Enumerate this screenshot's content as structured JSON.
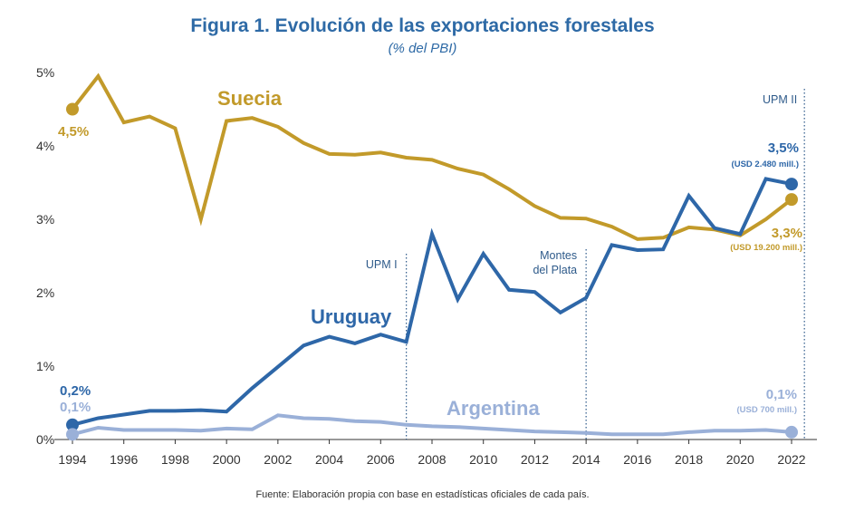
{
  "header": {
    "title": "Figura 1. Evolución de las exportaciones forestales",
    "subtitle": "(% del PBI)"
  },
  "footer": {
    "source": "Fuente: Elaboración propia con base en estadísticas oficiales de cada país."
  },
  "colors": {
    "suecia": "#c29a2a",
    "uruguay": "#2e67a8",
    "argentina": "#9ab0d8",
    "axis": "#333333"
  },
  "chart_data": {
    "type": "line",
    "title": "Figura 1. Evolución de las exportaciones forestales",
    "subtitle": "(% del PBI)",
    "xlim": [
      1994,
      2022
    ],
    "ylim": [
      0,
      5
    ],
    "x_ticks": [
      1994,
      1996,
      1998,
      2000,
      2002,
      2004,
      2006,
      2008,
      2010,
      2012,
      2014,
      2016,
      2018,
      2020,
      2022
    ],
    "y_ticks": [
      {
        "value": 0,
        "label": "0%"
      },
      {
        "value": 1,
        "label": "1%"
      },
      {
        "value": 2,
        "label": "2%"
      },
      {
        "value": 3,
        "label": "3%"
      },
      {
        "value": 4,
        "label": "4%"
      },
      {
        "value": 5,
        "label": "5%"
      }
    ],
    "x": [
      1994,
      1995,
      1996,
      1997,
      1998,
      1999,
      2000,
      2001,
      2002,
      2003,
      2004,
      2005,
      2006,
      2007,
      2008,
      2009,
      2010,
      2011,
      2012,
      2013,
      2014,
      2015,
      2016,
      2017,
      2018,
      2019,
      2020,
      2021,
      2022
    ],
    "series": [
      {
        "name": "Suecia",
        "color": "#c29a2a",
        "values": [
          4.5,
          4.95,
          4.32,
          4.4,
          4.24,
          3.0,
          4.34,
          4.38,
          4.26,
          4.04,
          3.89,
          3.88,
          3.91,
          3.84,
          3.81,
          3.69,
          3.61,
          3.41,
          3.18,
          3.02,
          3.01,
          2.9,
          2.73,
          2.75,
          2.89,
          2.86,
          2.78,
          3.0,
          3.27
        ],
        "start_label": "4,5%",
        "end_label": "3,3%",
        "end_sublabel": "(USD 19.200 mill.)"
      },
      {
        "name": "Uruguay",
        "color": "#2e67a8",
        "values": [
          0.2,
          0.29,
          0.34,
          0.39,
          0.39,
          0.4,
          0.38,
          0.7,
          0.99,
          1.28,
          1.4,
          1.31,
          1.43,
          1.33,
          2.8,
          1.91,
          2.53,
          2.04,
          2.01,
          1.73,
          1.93,
          2.65,
          2.58,
          2.59,
          3.32,
          2.88,
          2.8,
          3.55,
          3.48
        ],
        "start_label": "0,2%",
        "end_label": "3,5%",
        "end_sublabel": "(USD 2.480 mill.)"
      },
      {
        "name": "Argentina",
        "color": "#9ab0d8",
        "values": [
          0.07,
          0.16,
          0.13,
          0.13,
          0.13,
          0.12,
          0.15,
          0.14,
          0.33,
          0.29,
          0.28,
          0.25,
          0.24,
          0.2,
          0.18,
          0.17,
          0.15,
          0.13,
          0.11,
          0.1,
          0.09,
          0.07,
          0.07,
          0.07,
          0.1,
          0.12,
          0.12,
          0.13,
          0.1
        ],
        "start_label": "0,1%",
        "end_label": "0,1%",
        "end_sublabel": "(USD 700 mill.)"
      }
    ],
    "annotations": [
      {
        "x": 2007,
        "lines": [
          "UPM I"
        ]
      },
      {
        "x": 2014,
        "lines": [
          "Montes",
          "del Plata"
        ]
      },
      {
        "x": 2022.5,
        "lines": [
          "UPM II"
        ]
      }
    ],
    "grid": false,
    "legend": "none"
  }
}
